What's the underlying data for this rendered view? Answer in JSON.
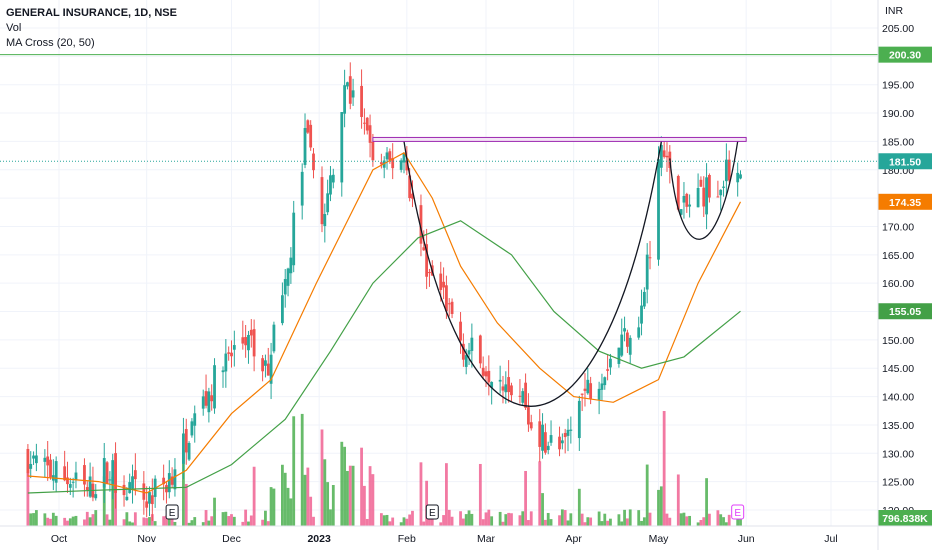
{
  "legend": {
    "title": "GENERAL INSURANCE, 1D, NSE",
    "vol": "Vol",
    "ma": "MA Cross (20, 50)"
  },
  "chart_data": {
    "type": "candlestick",
    "currency_label": "INR",
    "y_ticks": [
      "120.00",
      "125.00",
      "130.00",
      "135.00",
      "140.00",
      "145.00",
      "150.00",
      "155.00",
      "160.00",
      "165.00",
      "170.00",
      "175.00",
      "180.00",
      "185.00",
      "190.00",
      "195.00",
      "200.00",
      "205.00"
    ],
    "x_ticks": [
      {
        "label": "Oct",
        "date": "2022-10-01",
        "bold": false
      },
      {
        "label": "Nov",
        "date": "2022-11-01",
        "bold": false
      },
      {
        "label": "Dec",
        "date": "2022-12-01",
        "bold": false
      },
      {
        "label": "2023",
        "date": "2023-01-01",
        "bold": true
      },
      {
        "label": "Feb",
        "date": "2023-02-01",
        "bold": false
      },
      {
        "label": "Mar",
        "date": "2023-03-01",
        "bold": false
      },
      {
        "label": "Apr",
        "date": "2023-04-01",
        "bold": false
      },
      {
        "label": "May",
        "date": "2023-05-01",
        "bold": false
      },
      {
        "label": "Jun",
        "date": "2023-06-01",
        "bold": false
      },
      {
        "label": "Jul",
        "date": "2023-07-01",
        "bold": false
      }
    ],
    "colors": {
      "up": "#26a69a",
      "down": "#ef5350",
      "vol_up": "#4caf50",
      "vol_down": "#f06292",
      "ma20": "#f57c00",
      "ma50": "#43a047",
      "horizontal_level": "#4caf50",
      "last_price": "#26a69a",
      "resistance_box": "#9c27b0",
      "pattern": "#131722"
    },
    "price_labels": [
      {
        "text": "200.30",
        "value": 200.3,
        "color": "#4caf50"
      },
      {
        "text": "181.50",
        "value": 181.5,
        "color": "#26a69a"
      },
      {
        "text": "174.35",
        "value": 174.35,
        "color": "#f57c00"
      },
      {
        "text": "155.05",
        "value": 155.05,
        "color": "#43a047"
      },
      {
        "text": "796.838K",
        "value": null,
        "color": "#4caf50"
      }
    ],
    "horizontal_line": {
      "value": 200.3,
      "style": "solid"
    },
    "last_price_line": {
      "value": 181.5,
      "style": "dotted"
    },
    "resistance_box": {
      "from": "2023-01-20",
      "to": "2023-06-01",
      "low": 185.0,
      "high": 185.7
    },
    "earnings_markers": [
      {
        "label": "E",
        "date": "2022-11-10"
      },
      {
        "label": "E",
        "date": "2023-02-10"
      },
      {
        "label": "E",
        "date": "2023-05-29",
        "highlight": true
      }
    ],
    "series": [
      {
        "name": "Close",
        "kind": "price",
        "points": [
          {
            "date": "2022-09-20",
            "value": 129.5
          },
          {
            "date": "2022-09-27",
            "value": 127.0
          },
          {
            "date": "2022-10-04",
            "value": 125.5
          },
          {
            "date": "2022-10-11",
            "value": 123.0
          },
          {
            "date": "2022-10-18",
            "value": 127.5
          },
          {
            "date": "2022-10-25",
            "value": 124.0
          },
          {
            "date": "2022-11-01",
            "value": 122.0
          },
          {
            "date": "2022-11-08",
            "value": 125.0
          },
          {
            "date": "2022-11-15",
            "value": 133.0
          },
          {
            "date": "2022-11-22",
            "value": 140.0
          },
          {
            "date": "2022-11-29",
            "value": 146.0
          },
          {
            "date": "2022-12-06",
            "value": 150.0
          },
          {
            "date": "2022-12-13",
            "value": 144.0
          },
          {
            "date": "2022-12-20",
            "value": 158.0
          },
          {
            "date": "2022-12-27",
            "value": 186.0
          },
          {
            "date": "2023-01-03",
            "value": 171.0
          },
          {
            "date": "2023-01-10",
            "value": 196.0
          },
          {
            "date": "2023-01-17",
            "value": 186.0
          },
          {
            "date": "2023-01-24",
            "value": 180.0
          },
          {
            "date": "2023-01-31",
            "value": 183.0
          },
          {
            "date": "2023-02-07",
            "value": 163.0
          },
          {
            "date": "2023-02-14",
            "value": 158.0
          },
          {
            "date": "2023-02-21",
            "value": 149.0
          },
          {
            "date": "2023-02-28",
            "value": 146.0
          },
          {
            "date": "2023-03-07",
            "value": 144.0
          },
          {
            "date": "2023-03-14",
            "value": 140.0
          },
          {
            "date": "2023-03-21",
            "value": 133.0
          },
          {
            "date": "2023-03-28",
            "value": 130.0
          },
          {
            "date": "2023-04-04",
            "value": 140.0
          },
          {
            "date": "2023-04-11",
            "value": 145.0
          },
          {
            "date": "2023-04-18",
            "value": 150.0
          },
          {
            "date": "2023-04-25",
            "value": 155.0
          },
          {
            "date": "2023-05-02",
            "value": 184.0
          },
          {
            "date": "2023-05-09",
            "value": 172.0
          },
          {
            "date": "2023-05-16",
            "value": 176.0
          },
          {
            "date": "2023-05-23",
            "value": 178.0
          },
          {
            "date": "2023-05-30",
            "value": 181.5
          }
        ]
      },
      {
        "name": "MA 20",
        "kind": "ma20",
        "points": [
          {
            "date": "2022-09-20",
            "value": 126.0
          },
          {
            "date": "2022-10-15",
            "value": 125.0
          },
          {
            "date": "2022-11-01",
            "value": 123.0
          },
          {
            "date": "2022-11-15",
            "value": 127.0
          },
          {
            "date": "2022-12-01",
            "value": 137.0
          },
          {
            "date": "2022-12-15",
            "value": 143.0
          },
          {
            "date": "2022-12-31",
            "value": 160.0
          },
          {
            "date": "2023-01-10",
            "value": 170.0
          },
          {
            "date": "2023-01-20",
            "value": 180.0
          },
          {
            "date": "2023-01-31",
            "value": 183.0
          },
          {
            "date": "2023-02-10",
            "value": 175.0
          },
          {
            "date": "2023-02-20",
            "value": 163.0
          },
          {
            "date": "2023-03-05",
            "value": 153.0
          },
          {
            "date": "2023-03-20",
            "value": 145.0
          },
          {
            "date": "2023-04-01",
            "value": 140.0
          },
          {
            "date": "2023-04-15",
            "value": 139.0
          },
          {
            "date": "2023-05-01",
            "value": 143.0
          },
          {
            "date": "2023-05-15",
            "value": 160.0
          },
          {
            "date": "2023-05-30",
            "value": 174.35
          }
        ]
      },
      {
        "name": "MA 50",
        "kind": "ma50",
        "points": [
          {
            "date": "2022-09-20",
            "value": 123.0
          },
          {
            "date": "2022-10-15",
            "value": 123.5
          },
          {
            "date": "2022-11-15",
            "value": 124.0
          },
          {
            "date": "2022-12-01",
            "value": 128.0
          },
          {
            "date": "2022-12-20",
            "value": 136.0
          },
          {
            "date": "2023-01-05",
            "value": 148.0
          },
          {
            "date": "2023-01-20",
            "value": 160.0
          },
          {
            "date": "2023-02-05",
            "value": 168.0
          },
          {
            "date": "2023-02-20",
            "value": 171.0
          },
          {
            "date": "2023-03-10",
            "value": 165.0
          },
          {
            "date": "2023-03-25",
            "value": 155.0
          },
          {
            "date": "2023-04-10",
            "value": 148.0
          },
          {
            "date": "2023-04-25",
            "value": 145.0
          },
          {
            "date": "2023-05-10",
            "value": 147.0
          },
          {
            "date": "2023-05-30",
            "value": 155.05
          }
        ]
      }
    ]
  }
}
